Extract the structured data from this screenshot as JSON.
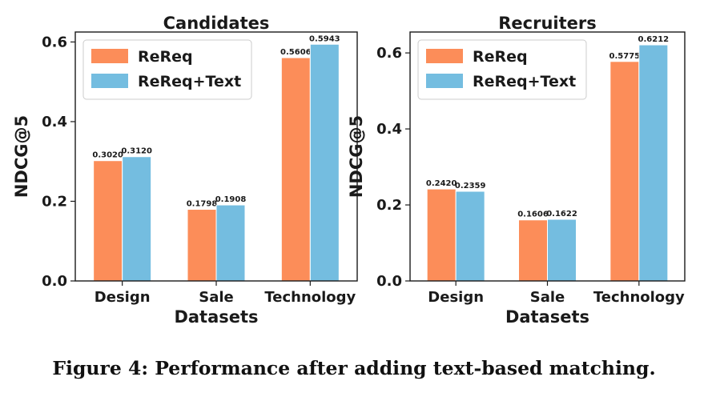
{
  "figure": {
    "caption": "Figure 4: Performance after adding text-based matching."
  },
  "chart_data": [
    {
      "type": "bar",
      "title": "Candidates",
      "xlabel": "Datasets",
      "ylabel": "NDCG@5",
      "categories": [
        "Design",
        "Sale",
        "Technology"
      ],
      "series": [
        {
          "name": "ReReq",
          "values": [
            0.302,
            0.1798,
            0.5606
          ],
          "labels": [
            "0.3020",
            "0.1798",
            "0.5606"
          ],
          "color": "#fc8d59"
        },
        {
          "name": "ReReq+Text",
          "values": [
            0.312,
            0.1908,
            0.5943
          ],
          "labels": [
            "0.3120",
            "0.1908",
            "0.5943"
          ],
          "color": "#74bde0"
        }
      ],
      "ylim": [
        0,
        0.625
      ],
      "yticks": [
        0.0,
        0.2,
        0.4,
        0.6
      ],
      "ytick_labels": [
        "0.0",
        "0.2",
        "0.4",
        "0.6"
      ],
      "legend": "top-left",
      "grid": false
    },
    {
      "type": "bar",
      "title": "Recruiters",
      "xlabel": "Datasets",
      "ylabel": "NDCG@5",
      "categories": [
        "Design",
        "Sale",
        "Technology"
      ],
      "series": [
        {
          "name": "ReReq",
          "values": [
            0.242,
            0.1606,
            0.5775
          ],
          "labels": [
            "0.2420",
            "0.1606",
            "0.5775"
          ],
          "color": "#fc8d59"
        },
        {
          "name": "ReReq+Text",
          "values": [
            0.2359,
            0.1622,
            0.6212
          ],
          "labels": [
            "0.2359",
            "0.1622",
            "0.6212"
          ],
          "color": "#74bde0"
        }
      ],
      "ylim": [
        0,
        0.655
      ],
      "yticks": [
        0.0,
        0.2,
        0.4,
        0.6
      ],
      "ytick_labels": [
        "0.0",
        "0.2",
        "0.4",
        "0.6"
      ],
      "legend": "top-left",
      "grid": false
    }
  ]
}
